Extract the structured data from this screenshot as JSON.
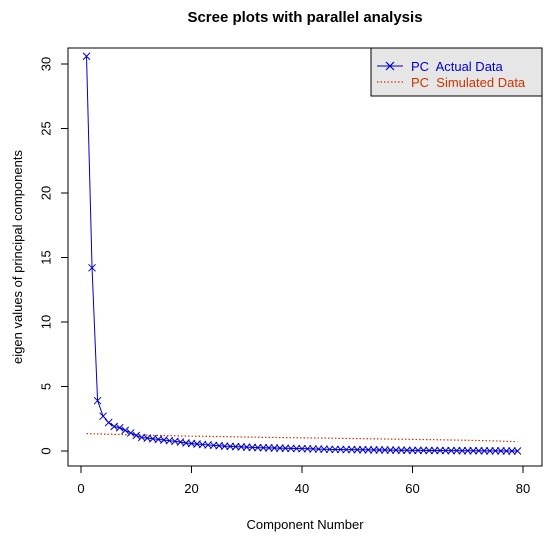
{
  "chart_data": {
    "type": "line",
    "title": "Scree plots with parallel analysis",
    "xlabel": "Component Number",
    "ylabel": "eigen values of principal components",
    "xlim": [
      0,
      80
    ],
    "ylim": [
      0,
      31
    ],
    "x_ticks": [
      0,
      20,
      40,
      60,
      80
    ],
    "y_ticks": [
      0,
      5,
      10,
      15,
      20,
      25,
      30
    ],
    "legend_position": "top-right",
    "grid": false,
    "series": [
      {
        "name": "PC  Actual Data",
        "color": "#0000cc",
        "style": "solid-line-x-markers",
        "x": [
          1,
          2,
          3,
          4,
          5,
          6,
          7,
          8,
          9,
          10,
          11,
          12,
          13,
          14,
          15,
          16,
          17,
          18,
          19,
          20,
          21,
          22,
          23,
          24,
          25,
          26,
          27,
          28,
          29,
          30,
          31,
          32,
          33,
          34,
          35,
          36,
          37,
          38,
          39,
          40,
          41,
          42,
          43,
          44,
          45,
          46,
          47,
          48,
          49,
          50,
          51,
          52,
          53,
          54,
          55,
          56,
          57,
          58,
          59,
          60,
          61,
          62,
          63,
          64,
          65,
          66,
          67,
          68,
          69,
          70,
          71,
          72,
          73,
          74,
          75,
          76,
          77,
          78,
          79
        ],
        "values": [
          30.6,
          14.2,
          3.9,
          2.7,
          2.2,
          1.9,
          1.8,
          1.6,
          1.4,
          1.2,
          1.05,
          1.0,
          0.95,
          0.9,
          0.85,
          0.8,
          0.75,
          0.7,
          0.62,
          0.58,
          0.54,
          0.5,
          0.47,
          0.44,
          0.41,
          0.38,
          0.36,
          0.34,
          0.32,
          0.3,
          0.28,
          0.26,
          0.25,
          0.24,
          0.23,
          0.22,
          0.21,
          0.2,
          0.19,
          0.18,
          0.17,
          0.16,
          0.15,
          0.14,
          0.13,
          0.12,
          0.12,
          0.11,
          0.11,
          0.1,
          0.1,
          0.09,
          0.09,
          0.08,
          0.08,
          0.07,
          0.07,
          0.06,
          0.06,
          0.05,
          0.05,
          0.05,
          0.04,
          0.04,
          0.04,
          0.03,
          0.03,
          0.03,
          0.02,
          0.02,
          0.02,
          0.02,
          0.01,
          0.01,
          0.01,
          0.01,
          0.0,
          0.0,
          0.0
        ]
      },
      {
        "name": "PC  Simulated Data",
        "color": "#cc3300",
        "style": "dotted-line",
        "x": [
          1,
          5,
          10,
          15,
          20,
          25,
          30,
          35,
          40,
          45,
          50,
          55,
          60,
          65,
          70,
          75,
          79
        ],
        "values": [
          1.35,
          1.3,
          1.25,
          1.2,
          1.15,
          1.12,
          1.08,
          1.05,
          1.02,
          0.99,
          0.96,
          0.93,
          0.9,
          0.87,
          0.83,
          0.78,
          0.72
        ]
      }
    ]
  }
}
